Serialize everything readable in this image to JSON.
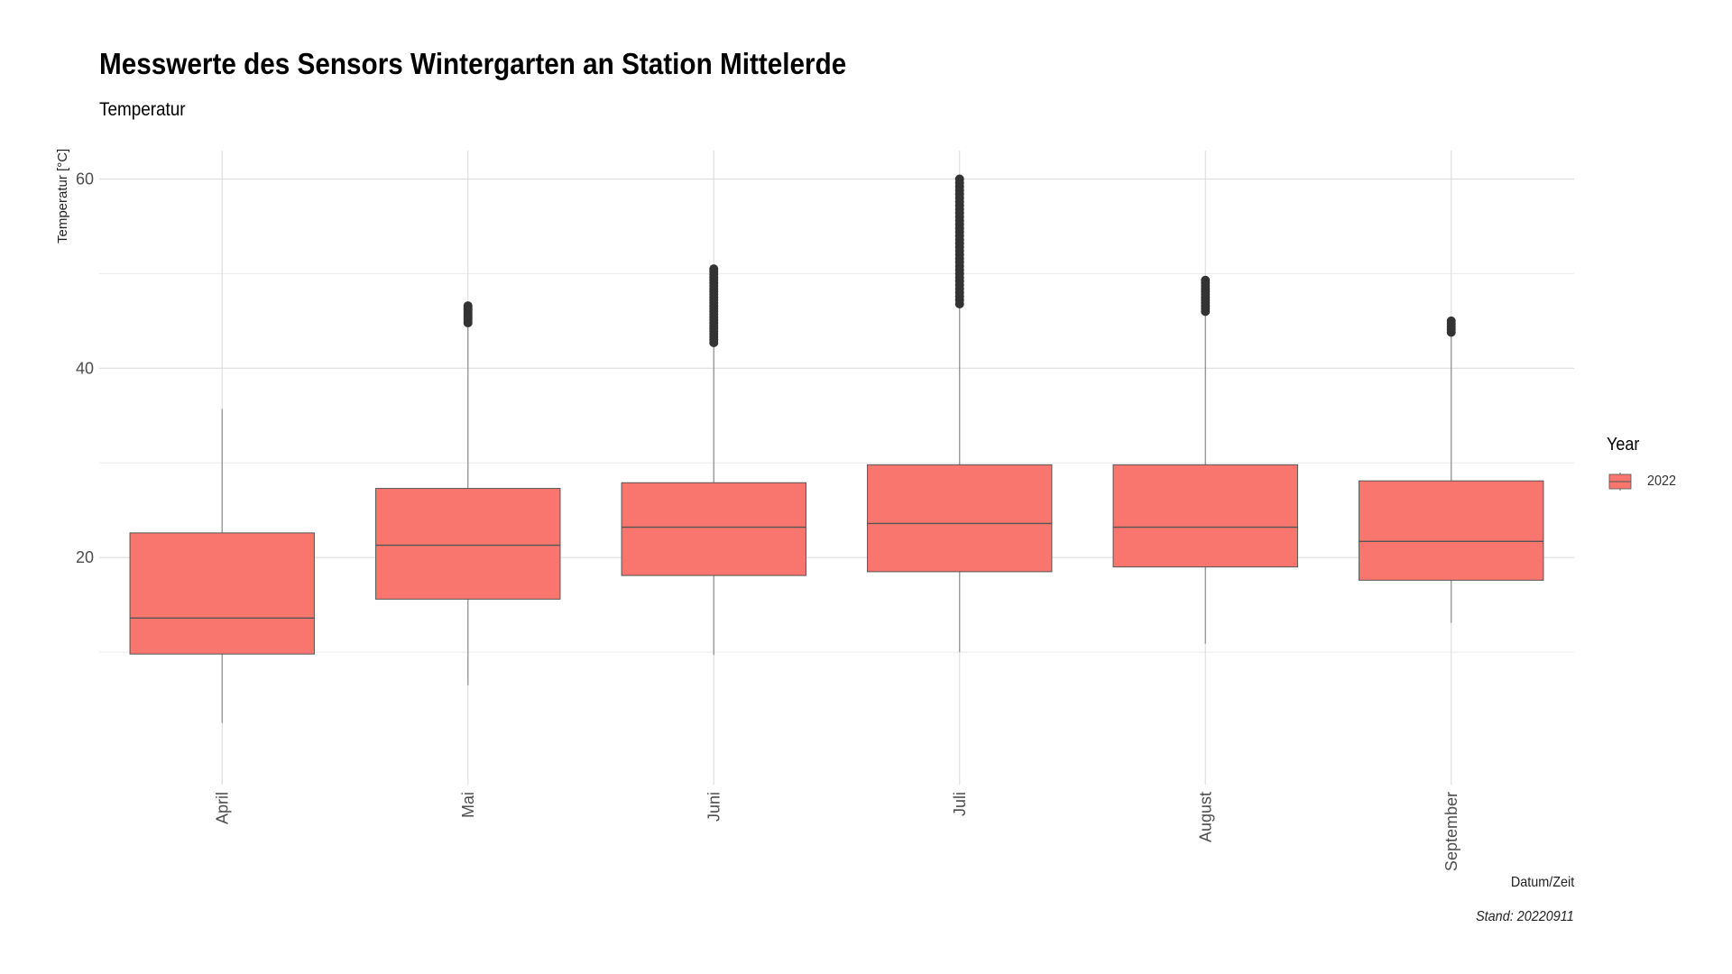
{
  "chart_data": {
    "type": "boxplot",
    "title": "Messwerte des Sensors Wintergarten an Station Mittelerde",
    "subtitle": "Temperatur",
    "xlabel": "Datum/Zeit",
    "ylabel": "Temperatur [°C]",
    "caption": "Stand: 20220911",
    "categories": [
      "April",
      "Mai",
      "Juni",
      "Juli",
      "August",
      "September"
    ],
    "ylim": [
      -4,
      63
    ],
    "y_ticks": [
      20,
      40,
      60
    ],
    "grid": true,
    "fill_color": "#F8766D",
    "legend": {
      "title": "Year",
      "position": "right",
      "entries": [
        {
          "label": "2022",
          "color": "#F8766D"
        }
      ]
    },
    "series": [
      {
        "name": "2022",
        "boxes": [
          {
            "category": "April",
            "min": 2.5,
            "q1": 9.8,
            "median": 13.6,
            "q3": 22.6,
            "max": 35.7,
            "outliers": []
          },
          {
            "category": "Mai",
            "min": 6.5,
            "q1": 15.6,
            "median": 21.3,
            "q3": 27.3,
            "max": 44.6,
            "outliers": [
              44.8,
              45.0,
              45.2,
              45.4,
              45.6,
              45.8,
              46.0,
              46.2,
              46.4,
              46.6
            ]
          },
          {
            "category": "Juni",
            "min": 9.7,
            "q1": 18.1,
            "median": 23.2,
            "q3": 27.9,
            "max": 42.5,
            "outliers": [
              42.7,
              43.0,
              43.3,
              43.6,
              43.9,
              44.2,
              44.5,
              44.8,
              45.1,
              45.4,
              45.7,
              46.0,
              46.3,
              46.6,
              46.9,
              47.2,
              47.5,
              47.8,
              48.1,
              48.4,
              48.7,
              49.0,
              49.3,
              49.6,
              49.9,
              50.2,
              50.5
            ]
          },
          {
            "category": "Juli",
            "min": 10.0,
            "q1": 18.5,
            "median": 23.6,
            "q3": 29.8,
            "max": 46.6,
            "outliers": [
              46.8,
              47.2,
              47.6,
              48.0,
              48.4,
              48.8,
              49.2,
              49.6,
              50.0,
              50.4,
              50.8,
              51.2,
              51.6,
              52.0,
              52.4,
              52.8,
              53.2,
              53.6,
              54.0,
              54.4,
              54.8,
              55.2,
              55.6,
              56.0,
              56.4,
              56.8,
              57.2,
              57.6,
              58.0,
              58.4,
              58.8,
              59.2,
              59.6,
              60.0
            ]
          },
          {
            "category": "August",
            "min": 10.9,
            "q1": 19.0,
            "median": 23.2,
            "q3": 29.8,
            "max": 45.8,
            "outliers": [
              46.0,
              46.3,
              46.6,
              46.9,
              47.2,
              47.5,
              47.8,
              48.1,
              48.4,
              48.7,
              49.0,
              49.3
            ]
          },
          {
            "category": "September",
            "min": 13.1,
            "q1": 17.6,
            "median": 21.7,
            "q3": 28.1,
            "max": 43.6,
            "outliers": [
              43.8,
              44.1,
              44.4,
              44.7,
              45.0
            ]
          }
        ]
      }
    ]
  }
}
